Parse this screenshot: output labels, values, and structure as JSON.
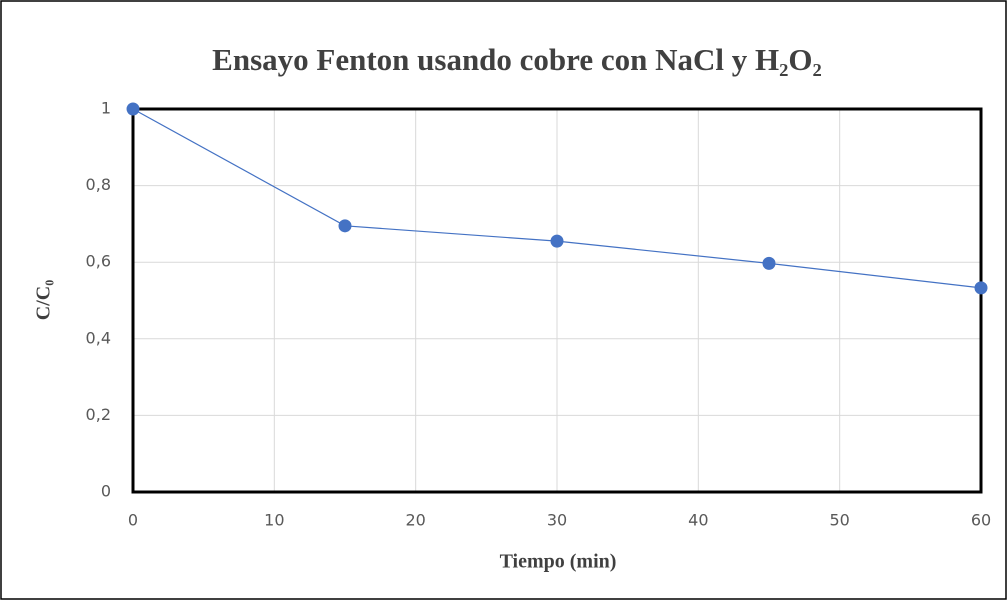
{
  "chart_data": {
    "type": "line",
    "title": "Ensayo Fenton usando cobre con NaCl y H₂O₂",
    "x_label": "Tiempo (min)",
    "y_label": "C/C₀",
    "x": [
      0,
      15,
      30,
      45,
      60
    ],
    "series": [
      {
        "name": "C/C₀",
        "color": "#4472c4",
        "values": [
          1,
          0.695,
          0.655,
          0.597,
          0.533
        ]
      }
    ],
    "xlim": [
      0,
      60
    ],
    "xticks": [
      0,
      10,
      20,
      30,
      40,
      50,
      60
    ],
    "ylim": [
      0,
      1
    ],
    "yticks": [
      0,
      {
        "value": 0.2,
        "label": "0,2"
      },
      {
        "value": 0.4,
        "label": "0,4"
      },
      {
        "value": 0.6,
        "label": "0,6"
      },
      {
        "value": 0.8,
        "label": "0,8"
      },
      1
    ],
    "grid": true
  }
}
